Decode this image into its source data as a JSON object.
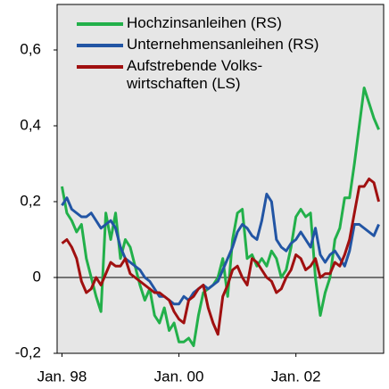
{
  "chart_data": {
    "type": "line",
    "x": [
      "1998-01",
      "1998-02",
      "1998-03",
      "1998-04",
      "1998-05",
      "1998-06",
      "1998-07",
      "1998-08",
      "1998-09",
      "1998-10",
      "1998-11",
      "1998-12",
      "1999-01",
      "1999-02",
      "1999-03",
      "1999-04",
      "1999-05",
      "1999-06",
      "1999-07",
      "1999-08",
      "1999-09",
      "1999-10",
      "1999-11",
      "1999-12",
      "2000-01",
      "2000-02",
      "2000-03",
      "2000-04",
      "2000-05",
      "2000-06",
      "2000-07",
      "2000-08",
      "2000-09",
      "2000-10",
      "2000-11",
      "2000-12",
      "2001-01",
      "2001-02",
      "2001-03",
      "2001-04",
      "2001-05",
      "2001-06",
      "2001-07",
      "2001-08",
      "2001-09",
      "2001-10",
      "2001-11",
      "2001-12",
      "2002-01",
      "2002-02",
      "2002-03",
      "2002-04",
      "2002-05",
      "2002-06",
      "2002-07",
      "2002-08",
      "2002-09",
      "2002-10",
      "2002-11",
      "2002-12",
      "2003-01",
      "2003-02",
      "2003-03",
      "2003-04",
      "2003-05",
      "2003-06"
    ],
    "series": [
      {
        "name": "Hochzinsanleihen (RS)",
        "color": "#22b04a",
        "values": [
          0.24,
          0.17,
          0.15,
          0.12,
          0.14,
          0.05,
          0.0,
          -0.05,
          -0.09,
          0.17,
          0.1,
          0.17,
          0.05,
          0.1,
          0.08,
          0.03,
          -0.02,
          -0.06,
          -0.03,
          -0.1,
          -0.12,
          -0.08,
          -0.14,
          -0.12,
          -0.17,
          -0.17,
          -0.16,
          -0.18,
          -0.1,
          -0.04,
          -0.03,
          -0.02,
          0.0,
          0.05,
          -0.05,
          0.1,
          0.17,
          0.18,
          0.05,
          0.06,
          0.03,
          0.05,
          0.03,
          0.07,
          0.05,
          0.0,
          0.02,
          0.08,
          0.16,
          0.18,
          0.16,
          0.17,
          0.0,
          -0.1,
          -0.04,
          0.0,
          0.1,
          0.13,
          0.21,
          0.21,
          0.3,
          0.4,
          0.5,
          0.46,
          0.42,
          0.39
        ]
      },
      {
        "name": "Unternehmensanleihen (RS)",
        "color": "#2255a4",
        "values": [
          0.19,
          0.21,
          0.18,
          0.17,
          0.16,
          0.16,
          0.17,
          0.15,
          0.13,
          0.14,
          0.15,
          0.13,
          0.08,
          0.05,
          0.04,
          0.03,
          0.02,
          0.0,
          -0.01,
          -0.03,
          -0.05,
          -0.05,
          -0.06,
          -0.07,
          -0.07,
          -0.05,
          -0.06,
          -0.04,
          -0.03,
          -0.02,
          -0.03,
          -0.02,
          -0.01,
          0.02,
          0.05,
          0.08,
          0.12,
          0.14,
          0.13,
          0.11,
          0.1,
          0.15,
          0.22,
          0.2,
          0.1,
          0.08,
          0.07,
          0.09,
          0.1,
          0.12,
          0.1,
          0.08,
          0.13,
          0.06,
          0.04,
          0.06,
          0.07,
          0.05,
          0.03,
          0.07,
          0.14,
          0.14,
          0.13,
          0.12,
          0.11,
          0.14
        ]
      },
      {
        "name": "Aufstrebende Volks-\nwirtschaften (LS)",
        "color": "#a01010",
        "values": [
          0.09,
          0.1,
          0.08,
          0.05,
          -0.01,
          -0.04,
          -0.03,
          0.0,
          -0.02,
          0.01,
          0.04,
          0.03,
          0.03,
          0.05,
          0.01,
          0.0,
          -0.01,
          -0.02,
          -0.03,
          -0.04,
          -0.04,
          -0.05,
          -0.06,
          -0.09,
          -0.11,
          -0.12,
          -0.06,
          -0.05,
          -0.03,
          -0.02,
          -0.08,
          -0.12,
          -0.15,
          -0.05,
          -0.02,
          0.02,
          0.03,
          0.0,
          -0.02,
          0.05,
          0.04,
          0.02,
          0.0,
          -0.01,
          -0.04,
          -0.03,
          0.0,
          0.02,
          0.06,
          0.05,
          0.02,
          0.03,
          0.05,
          0.0,
          0.01,
          0.01,
          0.04,
          0.03,
          0.06,
          0.1,
          0.17,
          0.24,
          0.24,
          0.26,
          0.25,
          0.2
        ]
      }
    ],
    "xlim": [
      "1997-12",
      "2003-07"
    ],
    "xticks": [
      {
        "value": "1998-01",
        "label": "Jan. 98"
      },
      {
        "value": "2000-01",
        "label": "Jan. 00"
      },
      {
        "value": "2002-01",
        "label": "Jan. 02"
      }
    ],
    "ylim": [
      -0.2,
      0.72
    ],
    "yticks": [
      {
        "value": -0.2,
        "label": "-0,2"
      },
      0,
      {
        "value": 0.2,
        "label": "0,2"
      },
      {
        "value": 0.4,
        "label": "0,4"
      },
      {
        "value": 0.6,
        "label": "0,6"
      }
    ],
    "zero_line": true,
    "legend": "upper left"
  }
}
